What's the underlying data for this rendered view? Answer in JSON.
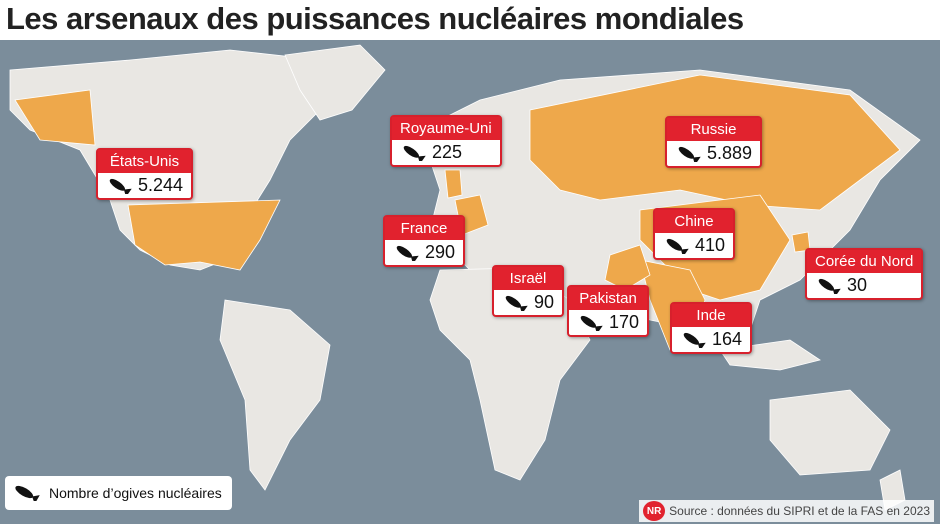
{
  "title": "Les arsenaux des puissances nucléaires mondiales",
  "markers": [
    {
      "country": "États-Unis",
      "warheads": "5.244"
    },
    {
      "country": "Royaume-Uni",
      "warheads": "225"
    },
    {
      "country": "Russie",
      "warheads": "5.889"
    },
    {
      "country": "France",
      "warheads": "290"
    },
    {
      "country": "Chine",
      "warheads": "410"
    },
    {
      "country": "Corée du Nord",
      "warheads": "30"
    },
    {
      "country": "Israël",
      "warheads": "90"
    },
    {
      "country": "Pakistan",
      "warheads": "170"
    },
    {
      "country": "Inde",
      "warheads": "164"
    }
  ],
  "legend": {
    "label": "Nombre d’ogives nucléaires"
  },
  "source": {
    "logo": "NR",
    "text": "Source : données du SIPRI et de la FAS en 2023"
  }
}
